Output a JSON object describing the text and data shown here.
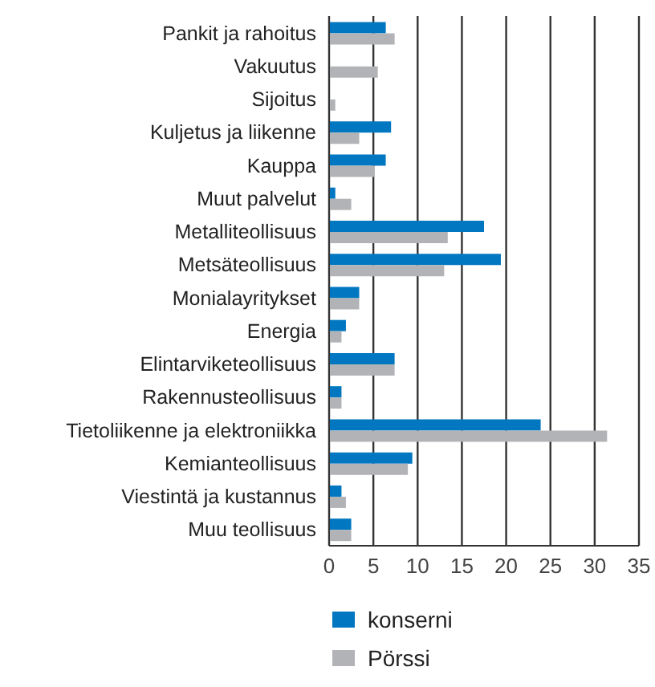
{
  "chart_data": {
    "type": "bar",
    "orientation": "horizontal",
    "categories": [
      "Pankit ja rahoitus",
      "Vakuutus",
      "Sijoitus",
      "Kuljetus ja liikenne",
      "Kauppa",
      "Muut palvelut",
      "Metalliteollisuus",
      "Metsäteollisuus",
      "Monialayritykset",
      "Energia",
      "Elintarviketeollisuus",
      "Rakennusteollisuus",
      "Tietoliikenne ja elektroniikka",
      "Kemianteollisuus",
      "Viestintä ja kustannus",
      "Muu teollisuus"
    ],
    "series": [
      {
        "name": "konserni",
        "color": "#0077c0",
        "values": [
          6.4,
          null,
          null,
          7.0,
          6.4,
          0.7,
          17.5,
          19.4,
          3.4,
          1.9,
          7.4,
          1.4,
          23.9,
          9.4,
          1.4,
          2.5
        ]
      },
      {
        "name": "Pörssi",
        "color": "#b2b3b6",
        "values": [
          7.4,
          5.5,
          0.7,
          3.4,
          5.1,
          2.5,
          13.4,
          13.0,
          3.4,
          1.4,
          7.4,
          1.4,
          31.4,
          8.9,
          1.9,
          2.5
        ]
      }
    ],
    "xlim": [
      0,
      35
    ],
    "xticks": [
      0,
      5,
      10,
      15,
      20,
      25,
      30,
      35
    ],
    "grid": "x",
    "legend": "bottom"
  }
}
